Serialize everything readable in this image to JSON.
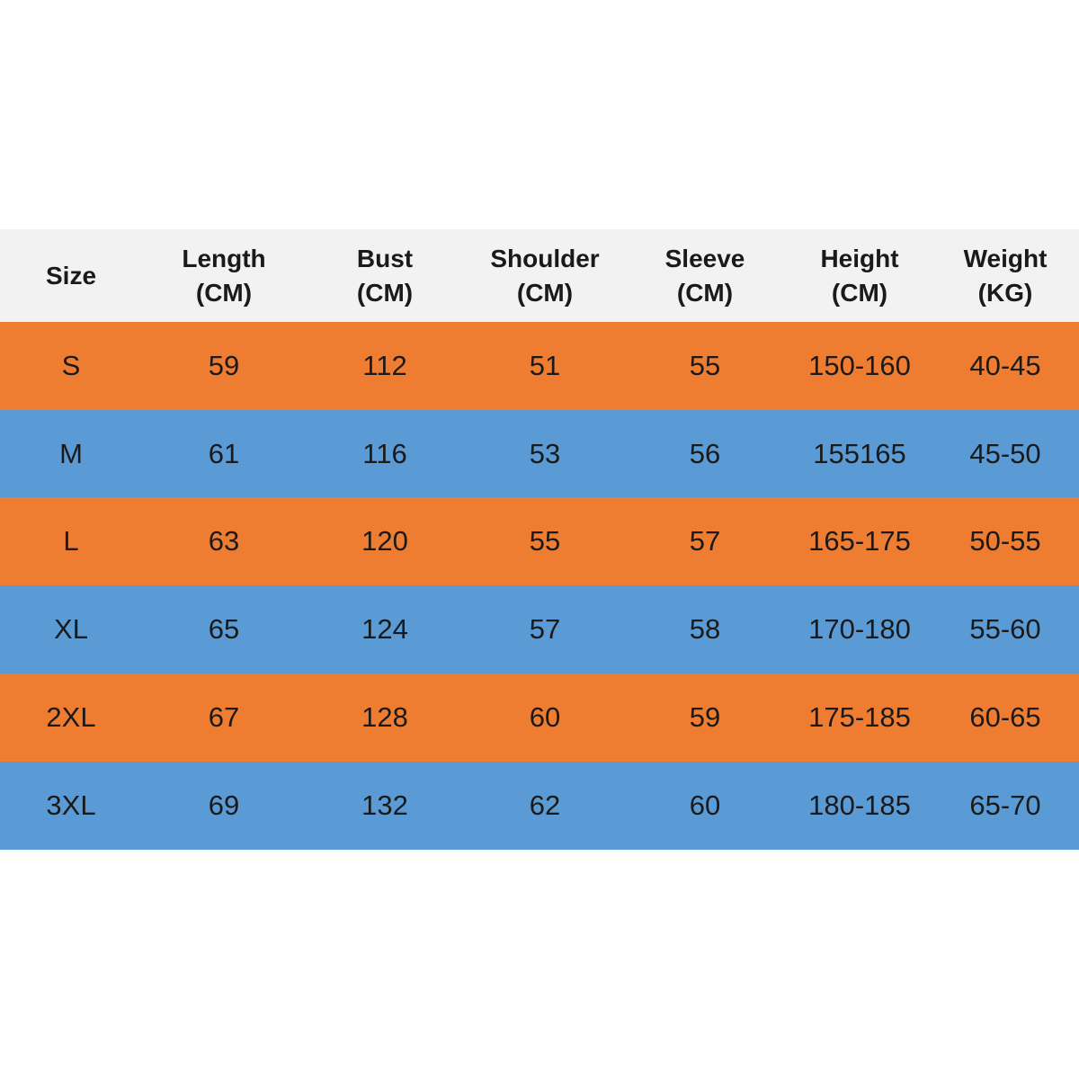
{
  "table": {
    "header": [
      [
        "Size"
      ],
      [
        "Length",
        "(CM)"
      ],
      [
        "Bust",
        "(CM)"
      ],
      [
        "Shoulder",
        "(CM)"
      ],
      [
        "Sleeve",
        "(CM)"
      ],
      [
        "Height",
        "(CM)"
      ],
      [
        "Weight",
        "(KG)"
      ]
    ],
    "rows": [
      [
        "S",
        "59",
        "112",
        "51",
        "55",
        "150-160",
        "40-45"
      ],
      [
        "M",
        "61",
        "116",
        "53",
        "56",
        "155165",
        "45-50"
      ],
      [
        "L",
        "63",
        "120",
        "55",
        "57",
        "165-175",
        "50-55"
      ],
      [
        "XL",
        "65",
        "124",
        "57",
        "58",
        "170-180",
        "55-60"
      ],
      [
        "2XL",
        "67",
        "128",
        "60",
        "59",
        "175-185",
        "60-65"
      ],
      [
        "3XL",
        "69",
        "132",
        "62",
        "60",
        "180-185",
        "65-70"
      ]
    ]
  }
}
